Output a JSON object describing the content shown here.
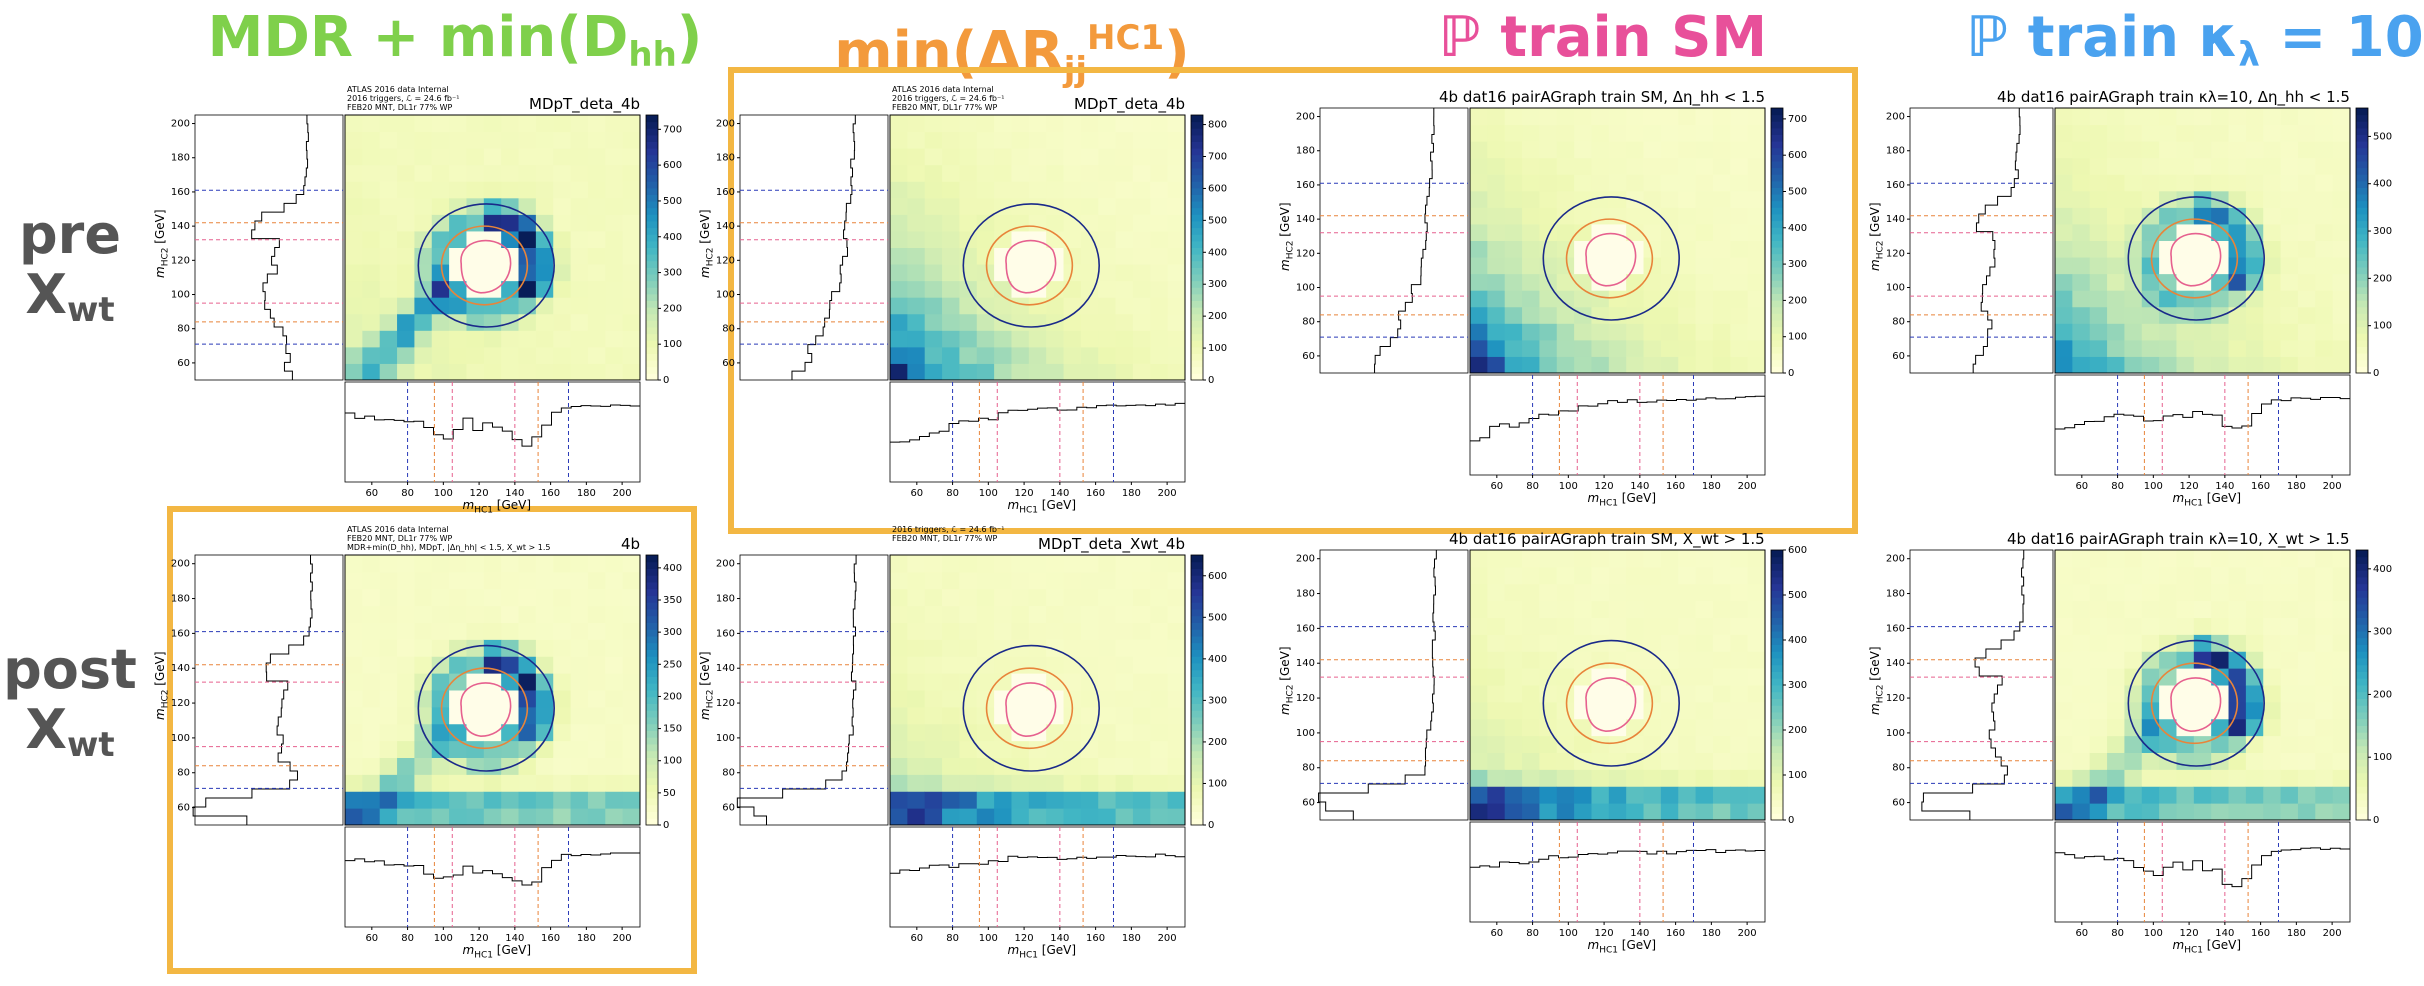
{
  "colors": {
    "highlight": "#f3b743",
    "green": "#7fd04b",
    "orange": "#f39a3c",
    "pink": "#e8509a",
    "blue": "#4aa2ef",
    "row_grey": "#555555"
  },
  "columns": [
    {
      "title_main": "MDR + min(D",
      "title_sub": "hh",
      "title_end": ")",
      "color": "#7fd04b"
    },
    {
      "title_main": "min(ΔR",
      "title_sub": "jj",
      "title_sup": "HC1",
      "title_end": ")",
      "color": "#f39a3c"
    },
    {
      "title_main": "ℙ train SM",
      "color": "#e8509a"
    },
    {
      "title_main": "ℙ train κ",
      "title_sub": "λ",
      "title_end": " = 10",
      "color": "#4aa2ef"
    }
  ],
  "rows": [
    {
      "title_main": "pre",
      "title_x": "X",
      "title_sub": "wt"
    },
    {
      "title_main": "post",
      "title_x": "X",
      "title_sub": "wt"
    }
  ],
  "axis_labels": {
    "x_main": "m",
    "x_sub": "HC1",
    "x_unit": " [GeV]",
    "y_main": "m",
    "y_sub": "HC2",
    "y_unit": " [GeV]"
  },
  "chart_data": [
    {
      "id": "p00",
      "type": "heatmap",
      "title": "MDpT_deta_4b",
      "atlas": [
        "ATLAS 2016 data Internal",
        "2016 triggers, ℒ = 24.6 fb⁻¹",
        "FEB20 MNT, DL1r 77% WP"
      ],
      "colorbar_ticks": [
        0,
        100,
        200,
        300,
        400,
        500,
        600,
        700
      ],
      "xlim": [
        45,
        210
      ],
      "ylim": [
        50,
        205
      ],
      "x_ticks": [
        60,
        80,
        100,
        120,
        140,
        160,
        180,
        200
      ],
      "y_ticks": [
        60,
        80,
        100,
        120,
        140,
        160,
        180,
        200
      ],
      "pattern": "ring",
      "vmax": 740
    },
    {
      "id": "p01",
      "type": "heatmap",
      "title": "MDpT_deta_4b",
      "atlas": [
        "ATLAS 2016 data Internal",
        "2016 triggers, ℒ = 24.6 fb⁻¹",
        "FEB20 MNT, DL1r 77% WP"
      ],
      "colorbar_ticks": [
        0,
        100,
        200,
        300,
        400,
        500,
        600,
        700,
        800
      ],
      "xlim": [
        45,
        210
      ],
      "ylim": [
        50,
        205
      ],
      "x_ticks": [
        60,
        80,
        100,
        120,
        140,
        160,
        180,
        200
      ],
      "y_ticks": [
        60,
        80,
        100,
        120,
        140,
        160,
        180,
        200
      ],
      "pattern": "corner",
      "vmax": 830
    },
    {
      "id": "p02",
      "type": "heatmap",
      "title": "4b dat16 pairAGraph train SM, Δη_hh < 1.5",
      "atlas": [],
      "colorbar_ticks": [
        0,
        100,
        200,
        300,
        400,
        500,
        600,
        700
      ],
      "xlim": [
        45,
        210
      ],
      "ylim": [
        50,
        205
      ],
      "x_ticks": [
        60,
        80,
        100,
        120,
        140,
        160,
        180,
        200
      ],
      "y_ticks": [
        60,
        80,
        100,
        120,
        140,
        160,
        180,
        200
      ],
      "pattern": "corner",
      "vmax": 730
    },
    {
      "id": "p03",
      "type": "heatmap",
      "title": "4b dat16 pairAGraph train κλ=10, Δη_hh < 1.5",
      "atlas": [],
      "colorbar_ticks": [
        0,
        100,
        200,
        300,
        400,
        500
      ],
      "xlim": [
        45,
        210
      ],
      "ylim": [
        50,
        205
      ],
      "x_ticks": [
        60,
        80,
        100,
        120,
        140,
        160,
        180,
        200
      ],
      "y_ticks": [
        60,
        80,
        100,
        120,
        140,
        160,
        180,
        200
      ],
      "pattern": "ringcorner",
      "vmax": 560
    },
    {
      "id": "p10",
      "type": "heatmap",
      "title": "4b",
      "atlas": [
        "ATLAS 2016 data Internal",
        "FEB20 MNT, DL1r 77% WP",
        "MDR+min(D_hh), MDpT, |Δη_hh| < 1.5, X_wt > 1.5"
      ],
      "colorbar_ticks": [
        0,
        50,
        100,
        150,
        200,
        250,
        300,
        350,
        400
      ],
      "xlim": [
        45,
        210
      ],
      "ylim": [
        50,
        205
      ],
      "x_ticks": [
        60,
        80,
        100,
        120,
        140,
        160,
        180,
        200
      ],
      "y_ticks": [
        60,
        80,
        100,
        120,
        140,
        160,
        180,
        200
      ],
      "pattern": "ringband",
      "vmax": 420
    },
    {
      "id": "p11",
      "type": "heatmap",
      "title": "MDpT_deta_Xwt_4b",
      "atlas": [
        "2016 triggers, ℒ = 24.6 fb⁻¹",
        "FEB20 MNT, DL1r 77% WP"
      ],
      "colorbar_ticks": [
        0,
        100,
        200,
        300,
        400,
        500,
        600
      ],
      "xlim": [
        45,
        210
      ],
      "ylim": [
        50,
        205
      ],
      "x_ticks": [
        60,
        80,
        100,
        120,
        140,
        160,
        180,
        200
      ],
      "y_ticks": [
        60,
        80,
        100,
        120,
        140,
        160,
        180,
        200
      ],
      "pattern": "band",
      "vmax": 650
    },
    {
      "id": "p12",
      "type": "heatmap",
      "title": "4b dat16 pairAGraph train SM, X_wt > 1.5",
      "atlas": [],
      "colorbar_ticks": [
        0,
        100,
        200,
        300,
        400,
        500,
        600
      ],
      "xlim": [
        45,
        210
      ],
      "ylim": [
        50,
        205
      ],
      "x_ticks": [
        60,
        80,
        100,
        120,
        140,
        160,
        180,
        200
      ],
      "y_ticks": [
        60,
        80,
        100,
        120,
        140,
        160,
        180,
        200
      ],
      "pattern": "band",
      "vmax": 600
    },
    {
      "id": "p13",
      "type": "heatmap",
      "title": "4b dat16 pairAGraph train κλ=10, X_wt > 1.5",
      "atlas": [],
      "colorbar_ticks": [
        0,
        100,
        200,
        300,
        400
      ],
      "xlim": [
        45,
        210
      ],
      "ylim": [
        50,
        205
      ],
      "x_ticks": [
        60,
        80,
        100,
        120,
        140,
        160,
        180,
        200
      ],
      "y_ticks": [
        60,
        80,
        100,
        120,
        140,
        160,
        180,
        200
      ],
      "pattern": "ringband",
      "vmax": 430
    }
  ]
}
